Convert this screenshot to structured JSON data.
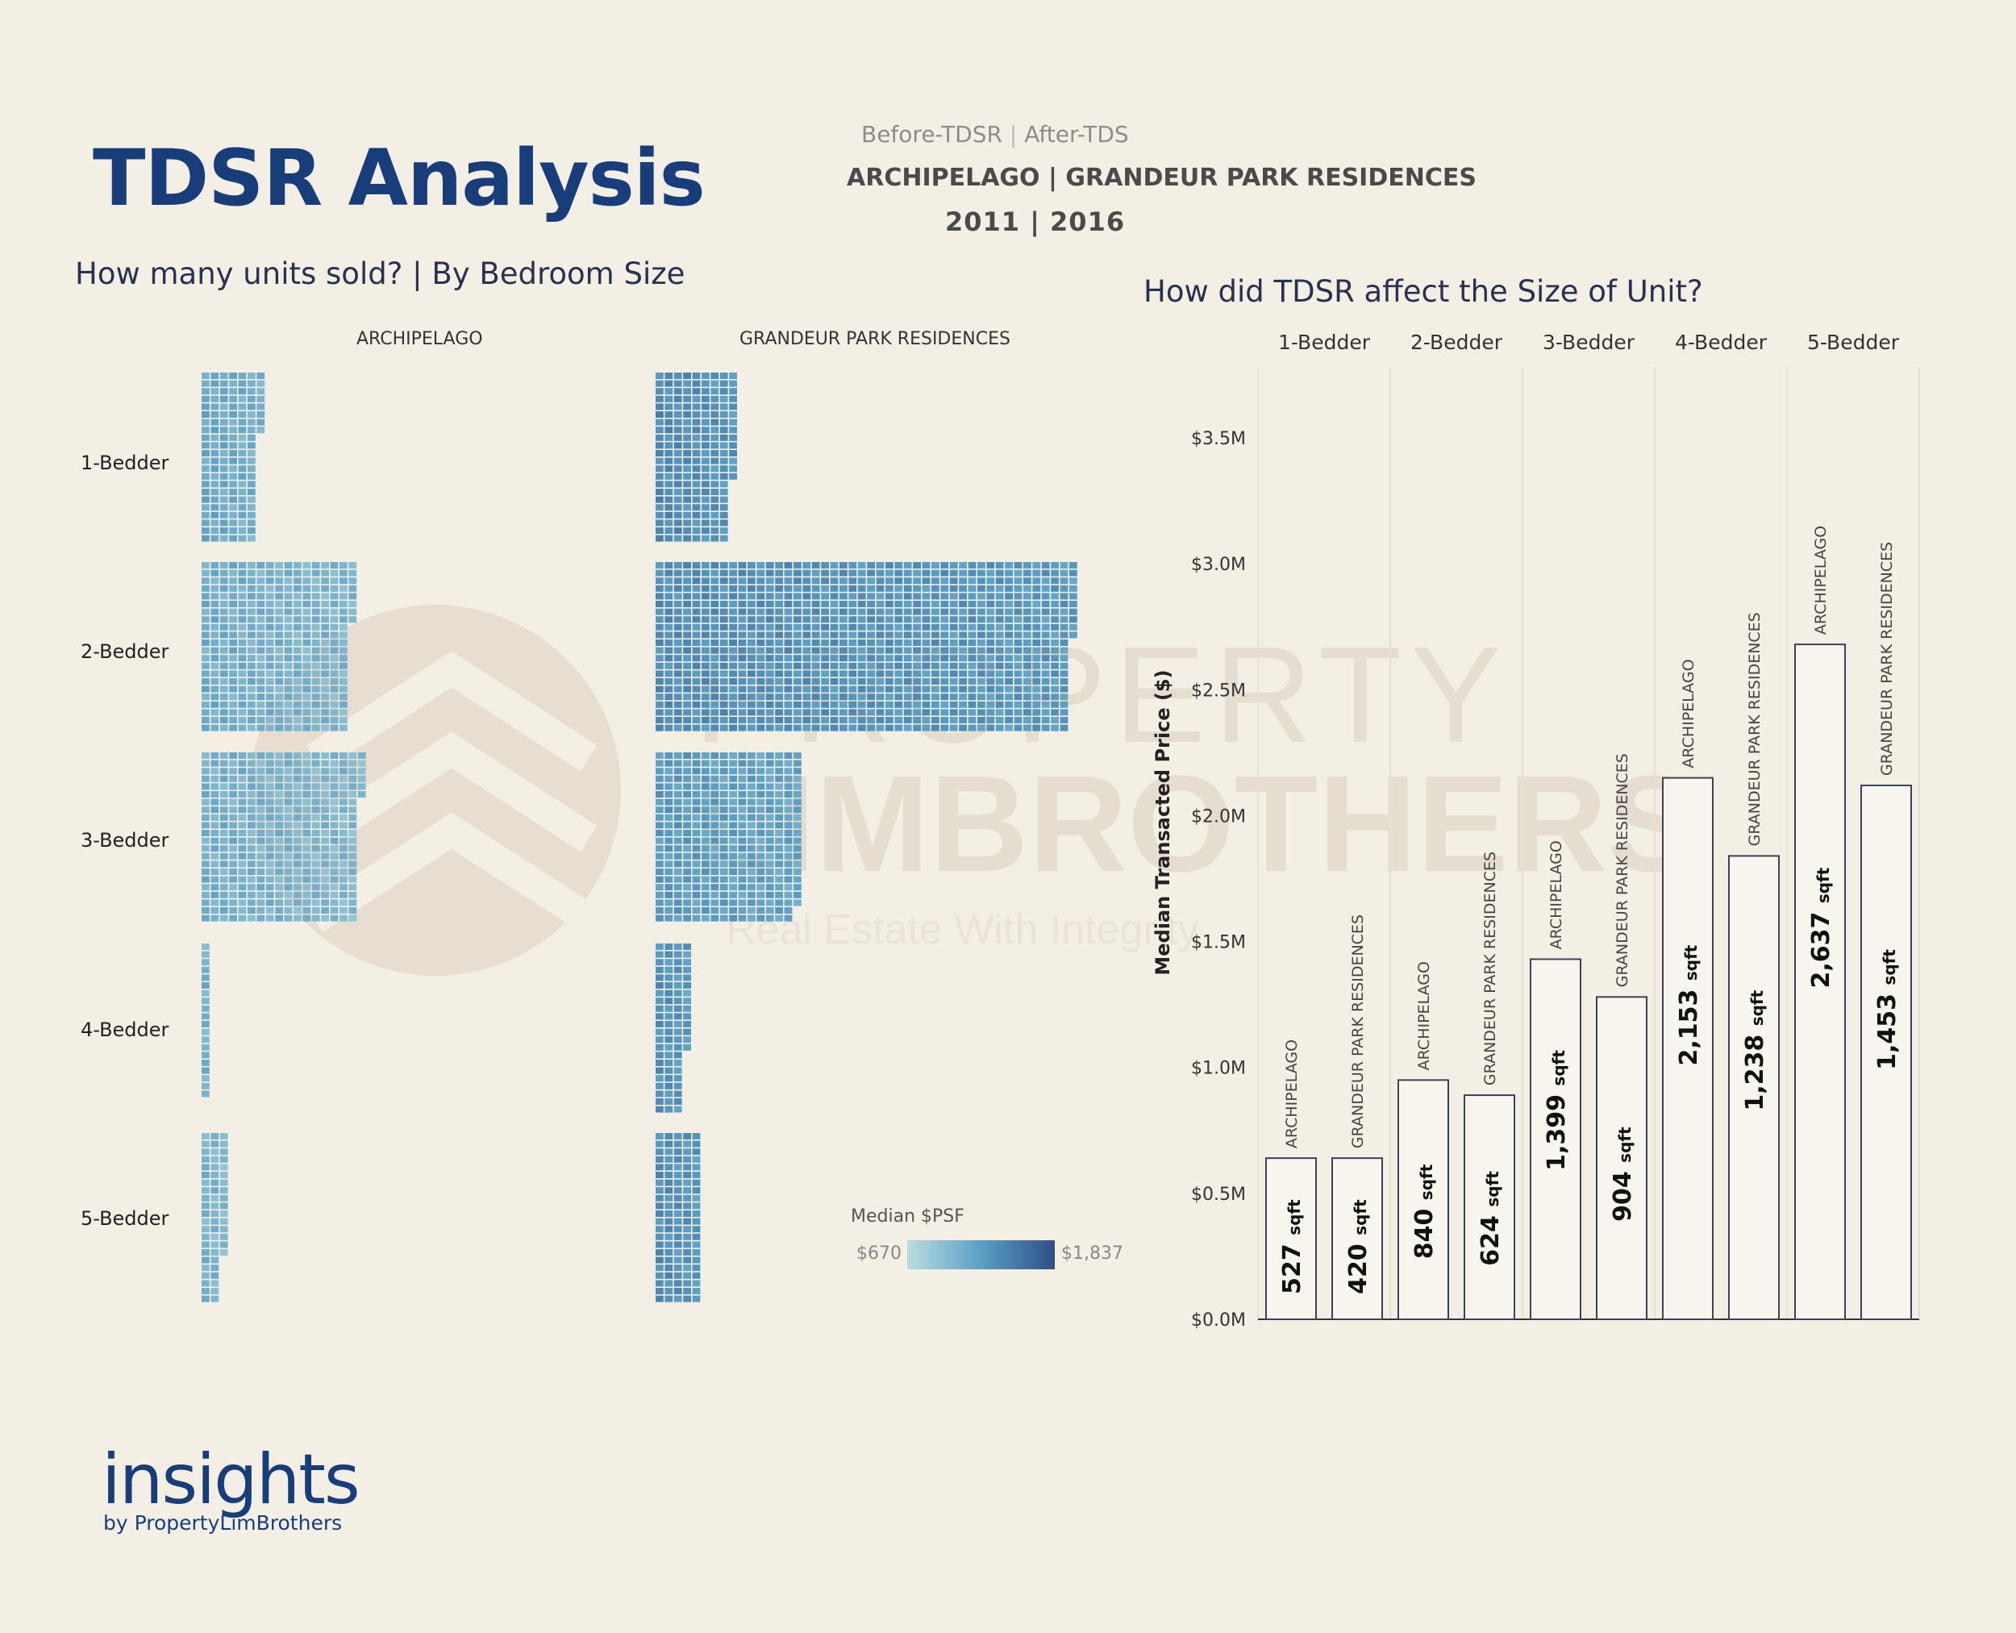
{
  "header": {
    "title": "TDSR Analysis",
    "compare_before": "Before-TDSR",
    "compare_sep": "|",
    "compare_after": "After-TDS",
    "projects_line": "ARCHIPELAGO | GRANDEUR PARK RESIDENCES",
    "years_line": "2011  |  2016"
  },
  "section_left": {
    "question": "How many units sold? | By Bedroom Size"
  },
  "section_right": {
    "question": "How did TDSR affect the Size of Unit?"
  },
  "branding": {
    "insights": "insights",
    "by": "by PropertyLimBrothers"
  },
  "watermark": {
    "line1": "PROPERTY",
    "line2": "LIMBROTHERS",
    "tagline": "Real Estate With Integrity"
  },
  "colors": {
    "bg": "#f4efe5",
    "brand": "#173d7a",
    "psf_low": "#b9dde0",
    "psf_mid": "#5a9fc4",
    "psf_high": "#2f4f86"
  },
  "chart_data": [
    {
      "type": "treemap",
      "title": "How many units sold? | By Bedroom Size",
      "columns": [
        "ARCHIPELAGO",
        "GRANDEUR PARK RESIDENCES"
      ],
      "rows": [
        "1-Bedder",
        "2-Bedder",
        "3-Bedder",
        "4-Bedder",
        "5-Bedder"
      ],
      "legend": {
        "title": "Median $PSF",
        "min_label": "$670",
        "max_label": "$1,837"
      },
      "cells": [
        {
          "project": "ARCHIPELAGO",
          "bed": "1-Bedder",
          "units": 140,
          "psf_level": 0.42
        },
        {
          "project": "ARCHIPELAGO",
          "bed": "2-Bedder",
          "units": 360,
          "psf_level": 0.38
        },
        {
          "project": "ARCHIPELAGO",
          "bed": "3-Bedder",
          "units": 380,
          "psf_level": 0.36
        },
        {
          "project": "ARCHIPELAGO",
          "bed": "4-Bedder",
          "units": 20,
          "psf_level": 0.35
        },
        {
          "project": "ARCHIPELAGO",
          "bed": "5-Bedder",
          "units": 60,
          "psf_level": 0.34
        },
        {
          "project": "GRANDEUR PARK RESIDENCES",
          "bed": "1-Bedder",
          "units": 190,
          "psf_level": 0.62
        },
        {
          "project": "GRANDEUR PARK RESIDENCES",
          "bed": "2-Bedder",
          "units": 1000,
          "psf_level": 0.6
        },
        {
          "project": "GRANDEUR PARK RESIDENCES",
          "bed": "3-Bedder",
          "units": 350,
          "psf_level": 0.52
        },
        {
          "project": "GRANDEUR PARK RESIDENCES",
          "bed": "4-Bedder",
          "units": 80,
          "psf_level": 0.58
        },
        {
          "project": "GRANDEUR PARK RESIDENCES",
          "bed": "5-Bedder",
          "units": 110,
          "psf_level": 0.6
        }
      ]
    },
    {
      "type": "bar",
      "title": "How did TDSR affect the Size of Unit?",
      "ylabel": "Median Transacted Price ($)",
      "ylim": [
        0,
        3.7
      ],
      "yticks": [
        "$0.0M",
        "$0.5M",
        "$1.0M",
        "$1.5M",
        "$2.0M",
        "$2.5M",
        "$3.0M",
        "$3.5M"
      ],
      "categories": [
        "1-Bedder",
        "2-Bedder",
        "3-Bedder",
        "4-Bedder",
        "5-Bedder"
      ],
      "unit_suffix": "sqft",
      "bars": [
        {
          "category": "1-Bedder",
          "project": "ARCHIPELAGO",
          "price_m": 0.64,
          "size": "527"
        },
        {
          "category": "1-Bedder",
          "project": "GRANDEUR PARK RESIDENCES",
          "price_m": 0.64,
          "size": "420"
        },
        {
          "category": "2-Bedder",
          "project": "ARCHIPELAGO",
          "price_m": 0.95,
          "size": "840"
        },
        {
          "category": "2-Bedder",
          "project": "GRANDEUR PARK RESIDENCES",
          "price_m": 0.89,
          "size": "624"
        },
        {
          "category": "3-Bedder",
          "project": "ARCHIPELAGO",
          "price_m": 1.43,
          "size": "1,399"
        },
        {
          "category": "3-Bedder",
          "project": "GRANDEUR PARK RESIDENCES",
          "price_m": 1.28,
          "size": "904"
        },
        {
          "category": "4-Bedder",
          "project": "ARCHIPELAGO",
          "price_m": 2.15,
          "size": "2,153"
        },
        {
          "category": "4-Bedder",
          "project": "GRANDEUR PARK RESIDENCES",
          "price_m": 1.84,
          "size": "1,238"
        },
        {
          "category": "5-Bedder",
          "project": "ARCHIPELAGO",
          "price_m": 2.68,
          "size": "2,637"
        },
        {
          "category": "5-Bedder",
          "project": "GRANDEUR PARK RESIDENCES",
          "price_m": 2.12,
          "size": "1,453"
        }
      ]
    }
  ]
}
